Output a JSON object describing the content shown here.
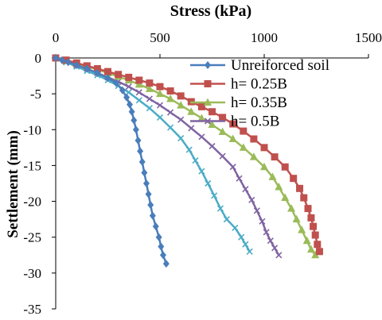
{
  "chart_data": {
    "type": "line",
    "title": "Stress (kPa)",
    "xlabel": "Stress (kPa)",
    "ylabel": "Settlement (mm)",
    "xlim": [
      0,
      1500
    ],
    "ylim": [
      -35,
      0
    ],
    "xticks": [
      0,
      500,
      1000,
      1500
    ],
    "yticks": [
      0,
      -5,
      -10,
      -15,
      -20,
      -25,
      -30,
      -35
    ],
    "x_axis_position": "top",
    "grid": false,
    "legend_position": "top-right",
    "series": [
      {
        "name": "Unreiforced soil",
        "color": "#4a7ebb",
        "marker": "diamond",
        "points": [
          [
            0,
            0
          ],
          [
            30,
            -0.3
          ],
          [
            60,
            -0.6
          ],
          [
            100,
            -1
          ],
          [
            150,
            -1.5
          ],
          [
            200,
            -2.1
          ],
          [
            250,
            -2.8
          ],
          [
            290,
            -3.5
          ],
          [
            320,
            -4.5
          ],
          [
            340,
            -5.5
          ],
          [
            355,
            -6.5
          ],
          [
            365,
            -7.5
          ],
          [
            375,
            -8.7
          ],
          [
            385,
            -10
          ],
          [
            395,
            -11.5
          ],
          [
            405,
            -13
          ],
          [
            415,
            -14.5
          ],
          [
            425,
            -16
          ],
          [
            435,
            -17.5
          ],
          [
            445,
            -19
          ],
          [
            455,
            -20.5
          ],
          [
            465,
            -22
          ],
          [
            480,
            -23.5
          ],
          [
            495,
            -25
          ],
          [
            505,
            -26.3
          ],
          [
            515,
            -27.5
          ],
          [
            530,
            -28.7
          ]
        ]
      },
      {
        "name": "h= 0.25B",
        "color": "#c0504d",
        "marker": "square",
        "points": [
          [
            0,
            0
          ],
          [
            50,
            -0.3
          ],
          [
            100,
            -0.7
          ],
          [
            150,
            -1.1
          ],
          [
            200,
            -1.5
          ],
          [
            250,
            -1.9
          ],
          [
            300,
            -2.3
          ],
          [
            350,
            -2.7
          ],
          [
            400,
            -3.1
          ],
          [
            450,
            -3.5
          ],
          [
            500,
            -4
          ],
          [
            550,
            -4.6
          ],
          [
            600,
            -5.3
          ],
          [
            650,
            -6.1
          ],
          [
            700,
            -6.8
          ],
          [
            750,
            -7.5
          ],
          [
            800,
            -8.3
          ],
          [
            850,
            -9.2
          ],
          [
            900,
            -10.2
          ],
          [
            950,
            -11.3
          ],
          [
            1000,
            -12.5
          ],
          [
            1050,
            -13.8
          ],
          [
            1100,
            -15.2
          ],
          [
            1140,
            -16.8
          ],
          [
            1170,
            -18.2
          ],
          [
            1190,
            -19.5
          ],
          [
            1210,
            -21
          ],
          [
            1225,
            -22.3
          ],
          [
            1235,
            -23.5
          ],
          [
            1245,
            -24.7
          ],
          [
            1255,
            -26
          ],
          [
            1265,
            -27
          ]
        ]
      },
      {
        "name": "h= 0.35B",
        "color": "#9bbb59",
        "marker": "triangle",
        "points": [
          [
            0,
            0
          ],
          [
            50,
            -0.4
          ],
          [
            100,
            -0.8
          ],
          [
            150,
            -1.2
          ],
          [
            200,
            -1.6
          ],
          [
            250,
            -2.1
          ],
          [
            300,
            -2.6
          ],
          [
            350,
            -3.1
          ],
          [
            400,
            -3.7
          ],
          [
            450,
            -4.3
          ],
          [
            500,
            -5
          ],
          [
            550,
            -5.7
          ],
          [
            600,
            -6.6
          ],
          [
            650,
            -7.5
          ],
          [
            700,
            -8.4
          ],
          [
            750,
            -9.3
          ],
          [
            800,
            -10.3
          ],
          [
            850,
            -11.3
          ],
          [
            900,
            -12.5
          ],
          [
            950,
            -13.8
          ],
          [
            1000,
            -15.2
          ],
          [
            1040,
            -16.6
          ],
          [
            1070,
            -18
          ],
          [
            1100,
            -19.5
          ],
          [
            1130,
            -21
          ],
          [
            1155,
            -22.5
          ],
          [
            1180,
            -24
          ],
          [
            1205,
            -25.5
          ],
          [
            1225,
            -26.7
          ],
          [
            1245,
            -27.5
          ]
        ]
      },
      {
        "name": "h= 0.5B",
        "color": "#8064a2",
        "marker": "x",
        "points": [
          [
            0,
            0
          ],
          [
            50,
            -0.5
          ],
          [
            100,
            -1
          ],
          [
            150,
            -1.5
          ],
          [
            200,
            -2.1
          ],
          [
            250,
            -2.7
          ],
          [
            300,
            -3.3
          ],
          [
            350,
            -4
          ],
          [
            400,
            -4.8
          ],
          [
            450,
            -5.7
          ],
          [
            500,
            -6.6
          ],
          [
            550,
            -7.6
          ],
          [
            600,
            -8.6
          ],
          [
            650,
            -9.8
          ],
          [
            700,
            -11
          ],
          [
            750,
            -12.3
          ],
          [
            800,
            -13.7
          ],
          [
            850,
            -15.2
          ],
          [
            880,
            -16.8
          ],
          [
            910,
            -18.3
          ],
          [
            940,
            -19.8
          ],
          [
            965,
            -21.3
          ],
          [
            990,
            -22.8
          ],
          [
            1010,
            -24.3
          ],
          [
            1030,
            -25.5
          ],
          [
            1050,
            -26.5
          ],
          [
            1070,
            -27.5
          ]
        ]
      },
      {
        "name": "",
        "color": "#4bacc6",
        "marker": "x",
        "points": [
          [
            0,
            0
          ],
          [
            50,
            -0.6
          ],
          [
            100,
            -1.2
          ],
          [
            150,
            -1.8
          ],
          [
            200,
            -2.4
          ],
          [
            250,
            -3.1
          ],
          [
            300,
            -3.9
          ],
          [
            350,
            -4.8
          ],
          [
            400,
            -5.9
          ],
          [
            450,
            -7
          ],
          [
            500,
            -8.3
          ],
          [
            550,
            -9.7
          ],
          [
            600,
            -11.2
          ],
          [
            640,
            -12.8
          ],
          [
            670,
            -14.3
          ],
          [
            700,
            -15.8
          ],
          [
            730,
            -17.5
          ],
          [
            760,
            -19.2
          ],
          [
            790,
            -21
          ],
          [
            820,
            -22.5
          ],
          [
            860,
            -23.7
          ],
          [
            890,
            -25
          ],
          [
            910,
            -26
          ],
          [
            930,
            -27
          ]
        ]
      }
    ]
  }
}
